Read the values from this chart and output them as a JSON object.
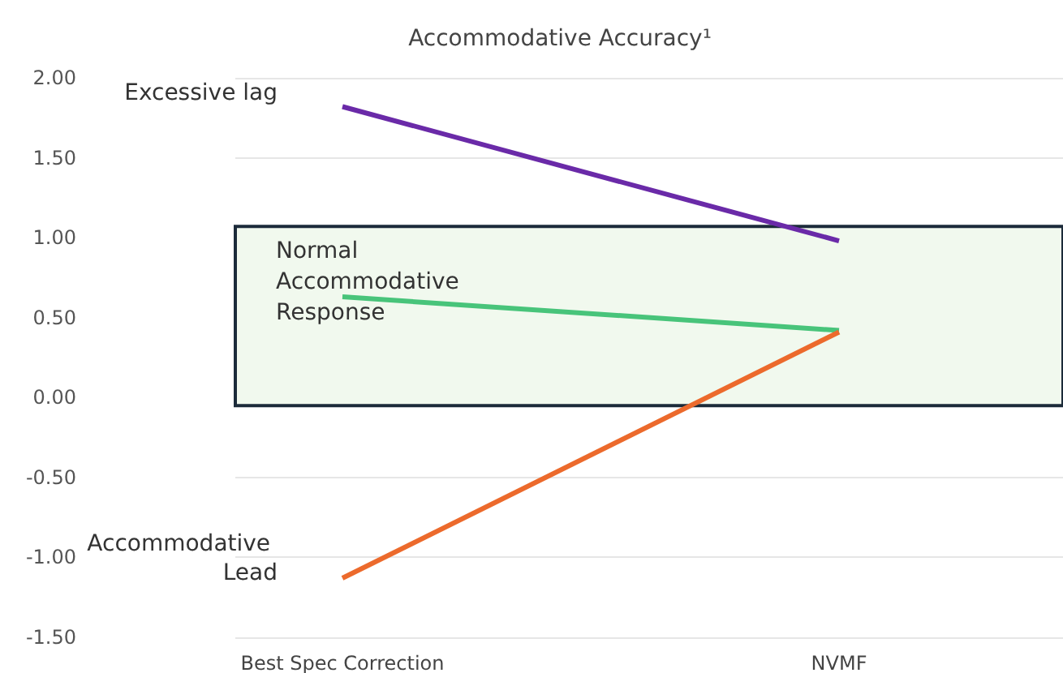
{
  "chart_data": {
    "type": "line",
    "title": "Accommodative Accuracy¹",
    "categories": [
      "Best Spec Correction",
      "NVMF"
    ],
    "series": [
      {
        "name": "Excessive lag",
        "color": "#6a2aa8",
        "values": [
          1.82,
          0.98
        ]
      },
      {
        "color": "#48c47a",
        "values": [
          0.63,
          0.42
        ]
      },
      {
        "name": "Accommodative Lead",
        "color": "#ec6a2c",
        "values": [
          -1.13,
          0.41
        ]
      }
    ],
    "ylim": [
      -1.5,
      2.0
    ],
    "yticks": [
      {
        "value": -1.5,
        "label": "-1.50"
      },
      {
        "value": -1.0,
        "label": "-1.00"
      },
      {
        "value": -0.5,
        "label": "-0.50"
      },
      {
        "value": 0,
        "label": "0.00"
      },
      {
        "value": 0.5,
        "label": "0.50"
      },
      {
        "value": 1.0,
        "label": "1.00"
      },
      {
        "value": 1.5,
        "label": "1.50"
      },
      {
        "value": 2.0,
        "label": "2.00"
      }
    ],
    "bands": [
      {
        "axis": "y",
        "from": -0.05,
        "to": 1.07,
        "label": "Normal Accommodative Response",
        "color": "#f1f9ee"
      }
    ],
    "grid": "y",
    "legend": false
  }
}
